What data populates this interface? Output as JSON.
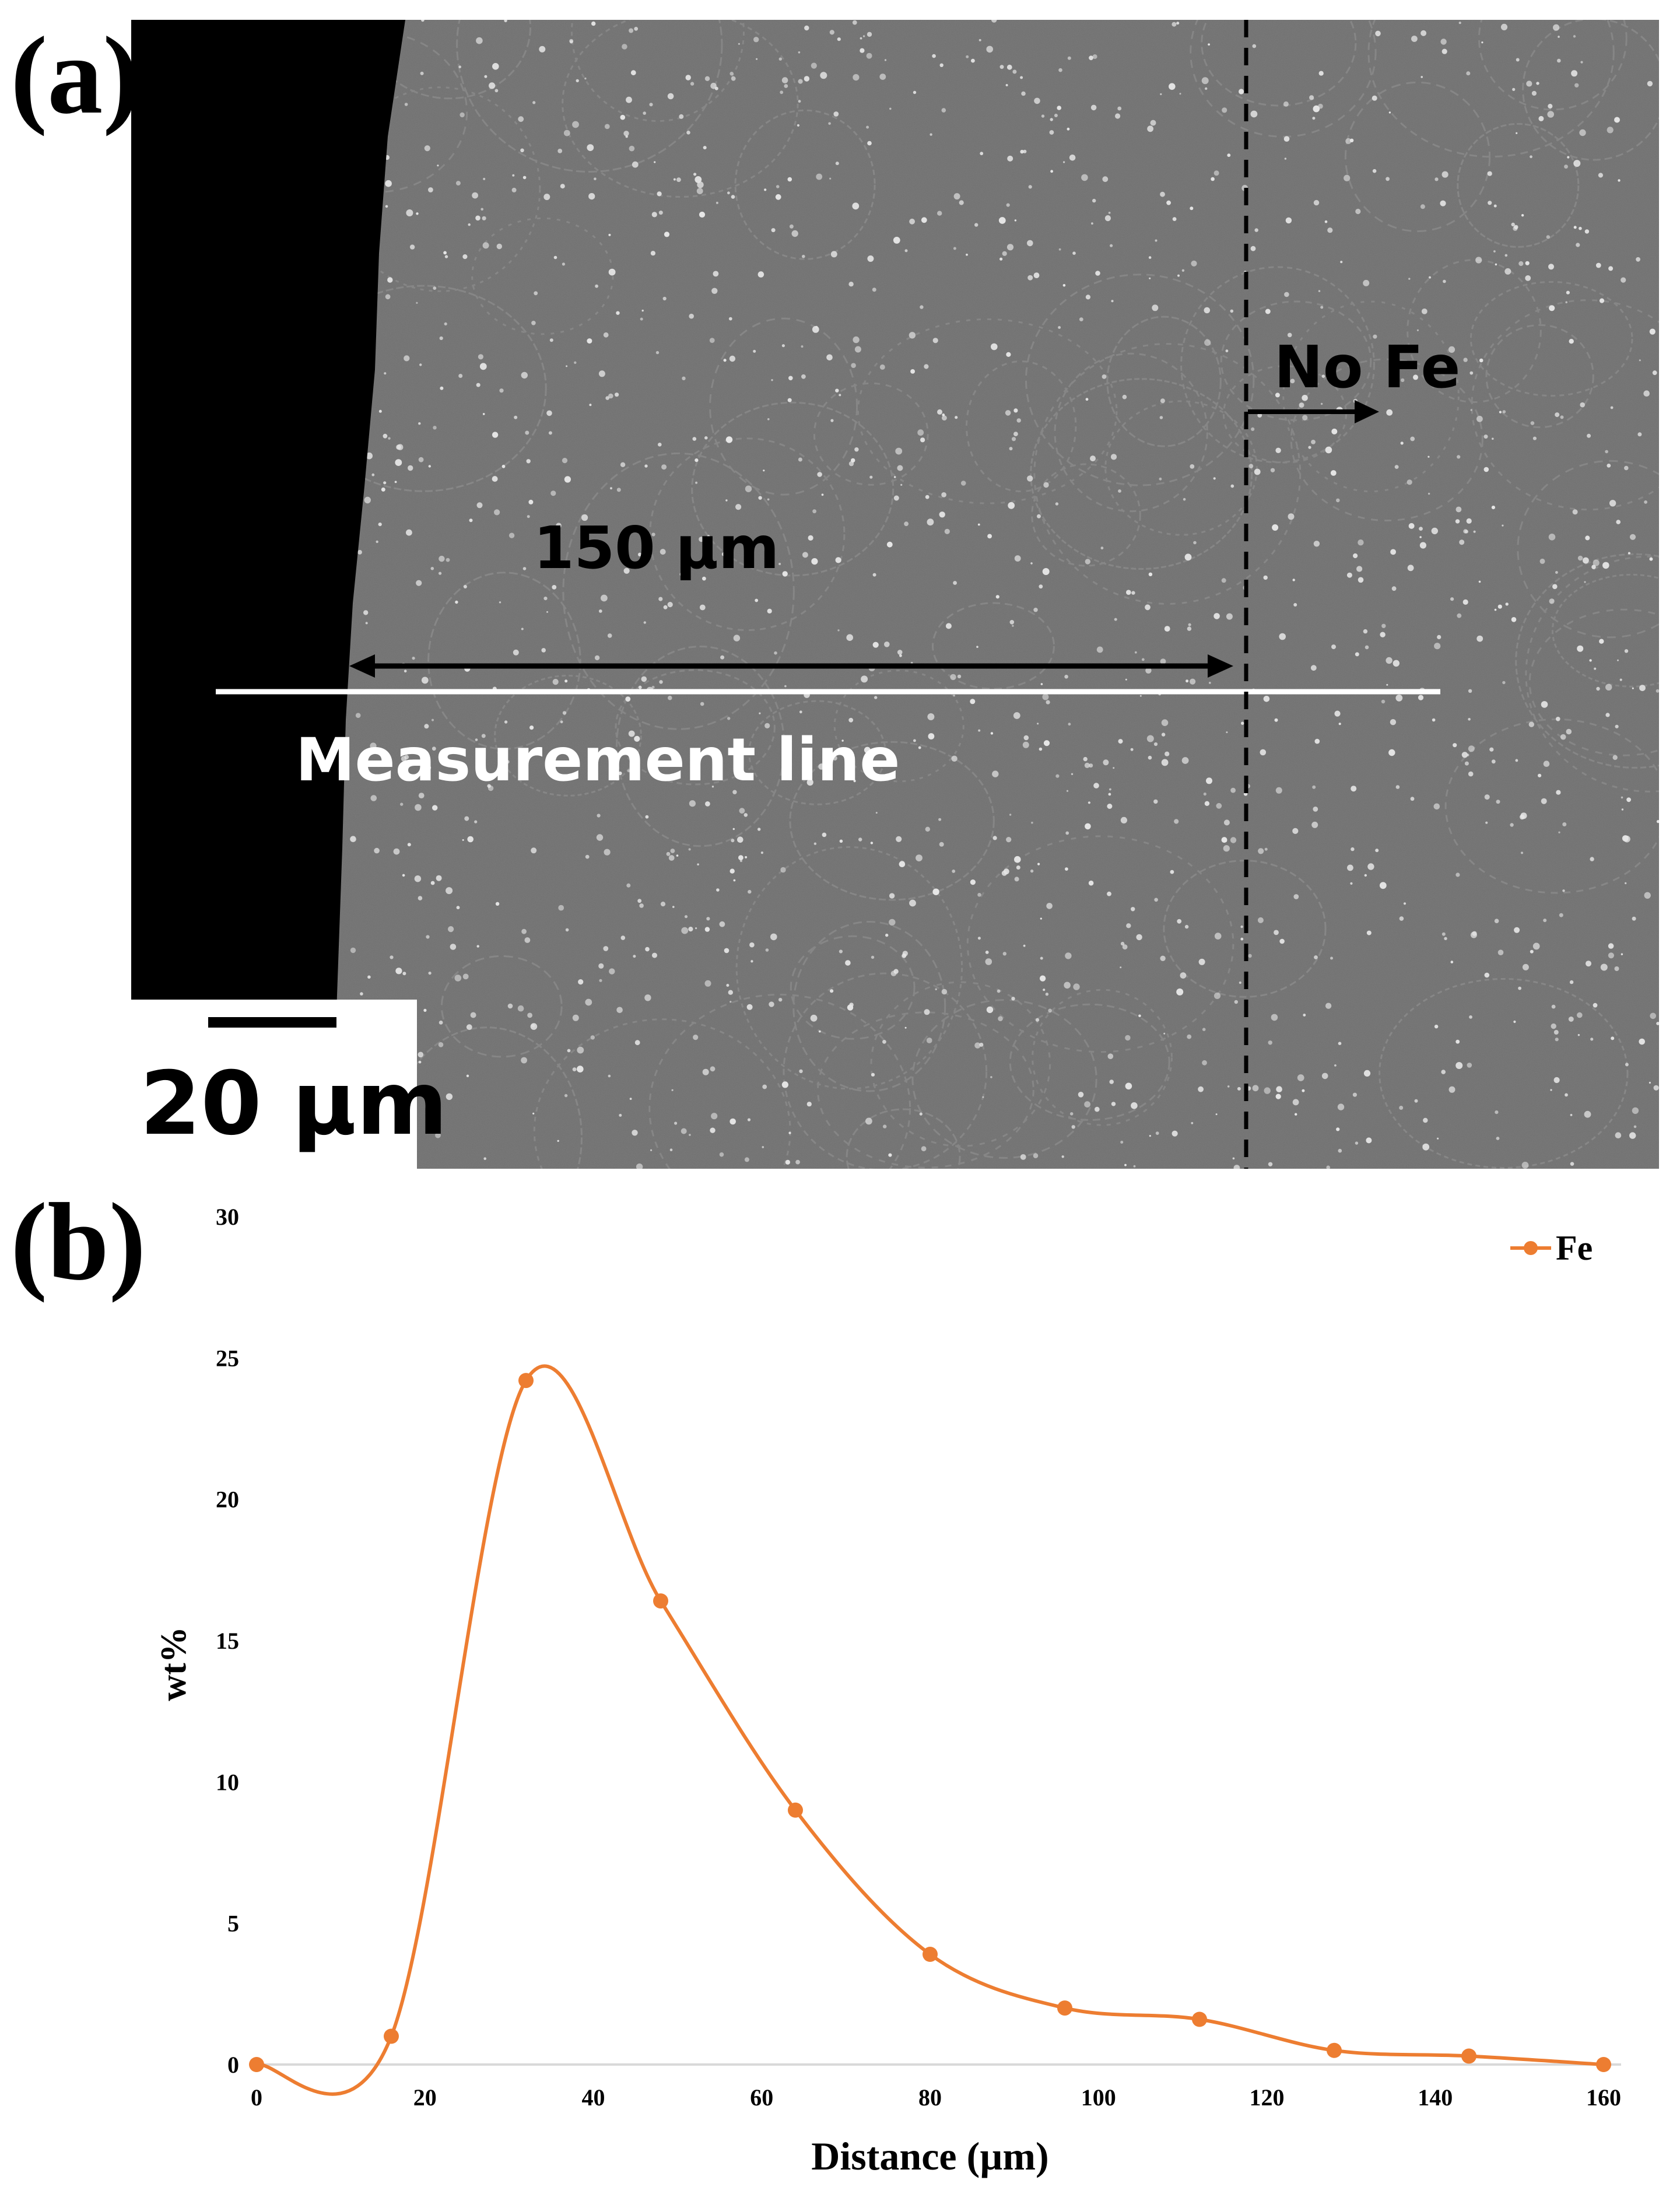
{
  "panel_a": {
    "label": "(a)",
    "annotation_no_fe": "No Fe",
    "annotation_distance": "150 µm",
    "annotation_measurement": "Measurement line",
    "scale_bar_label": "20 µm"
  },
  "panel_b": {
    "label": "(b)"
  },
  "chart_data": {
    "type": "line",
    "title": "",
    "xlabel": "Distance (µm)",
    "ylabel": "wt%",
    "xlim": [
      0,
      160
    ],
    "ylim": [
      0,
      30
    ],
    "xticks": [
      0,
      20,
      40,
      60,
      80,
      100,
      120,
      140,
      160
    ],
    "yticks": [
      0,
      5,
      10,
      15,
      20,
      25,
      30
    ],
    "grid": false,
    "legend_position": "top-right",
    "smoothed": true,
    "series": [
      {
        "name": "Fe",
        "color": "#ED7D31",
        "x": [
          0,
          16,
          32,
          48,
          64,
          80,
          96,
          112,
          128,
          144,
          160
        ],
        "y": [
          0,
          1.0,
          24.2,
          16.4,
          9.0,
          3.9,
          2.0,
          1.6,
          0.5,
          0.3,
          0
        ]
      }
    ]
  }
}
